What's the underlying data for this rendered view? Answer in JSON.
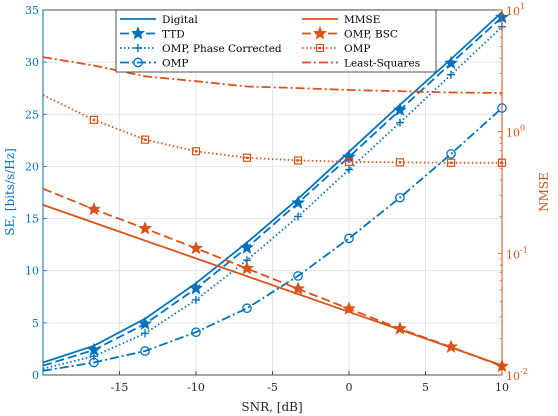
{
  "chart_data": {
    "type": "line",
    "xlabel": "SNR, [dB]",
    "ylabel_left": "SE, [bits/s/Hz]",
    "ylabel_right": "NMSE",
    "xlim": [
      -20,
      10
    ],
    "ylim_left": [
      0,
      35
    ],
    "ylim_right_log10": [
      -2,
      1
    ],
    "x_ticks": [
      -15,
      -10,
      -5,
      0,
      5,
      10
    ],
    "x_tick_labels": [
      "-15",
      "-10",
      "-5",
      "0",
      "5",
      "10"
    ],
    "y_left_ticks": [
      0,
      5,
      10,
      15,
      20,
      25,
      30,
      35
    ],
    "y_left_tick_labels": [
      "0",
      "5",
      "10",
      "15",
      "20",
      "25",
      "30",
      "35"
    ],
    "y_right_ticks": [
      0.01,
      0.1,
      1,
      10
    ],
    "y_right_tick_labels": [
      "10",
      "10",
      "10",
      "10"
    ],
    "y_right_tick_exponents": [
      "-2",
      "-1",
      "0",
      "1"
    ],
    "grid": true,
    "colors": {
      "blue": "#0072BD",
      "orange": "#D95319"
    },
    "legend": {
      "placement": "top",
      "columns": [
        [
          "Digital",
          "TTD",
          "OMP, Phase Corrected",
          "OMP"
        ],
        [
          "MMSE",
          "OMP, BSC",
          "OMP",
          "Least-Squares"
        ]
      ]
    },
    "series": [
      {
        "name": "Digital",
        "axis": "left",
        "color": "#0072BD",
        "line": "solid",
        "marker": "none",
        "x": [
          -20,
          -16.67,
          -13.33,
          -10,
          -6.67,
          -3.33,
          0,
          3.33,
          6.67,
          10
        ],
        "y": [
          1.2,
          2.8,
          5.4,
          8.8,
          12.7,
          16.9,
          21.4,
          25.9,
          30.3,
          34.8
        ]
      },
      {
        "name": "TTD",
        "axis": "left",
        "color": "#0072BD",
        "line": "dashed",
        "marker": "star",
        "x": [
          -20,
          -16.67,
          -13.33,
          -10,
          -6.67,
          -3.33,
          0,
          3.33,
          6.67,
          10
        ],
        "y": [
          0.9,
          2.4,
          4.9,
          8.3,
          12.2,
          16.5,
          20.9,
          25.4,
          29.9,
          34.3
        ]
      },
      {
        "name": "OMP, Phase Corrected",
        "axis": "left",
        "color": "#0072BD",
        "line": "dotted",
        "marker": "plus",
        "x": [
          -20,
          -16.67,
          -13.33,
          -10,
          -6.67,
          -3.33,
          0,
          3.33,
          6.67,
          10
        ],
        "y": [
          0.6,
          1.8,
          4.0,
          7.2,
          11.0,
          15.2,
          19.7,
          24.2,
          28.8,
          33.4
        ]
      },
      {
        "name": "OMP",
        "axis": "left",
        "color": "#0072BD",
        "line": "dashdot",
        "marker": "circle",
        "x": [
          -20,
          -16.67,
          -13.33,
          -10,
          -6.67,
          -3.33,
          0,
          3.33,
          6.67,
          10
        ],
        "y": [
          0.4,
          1.2,
          2.3,
          4.1,
          6.4,
          9.5,
          13.1,
          17.0,
          21.2,
          25.6
        ]
      },
      {
        "name": "MMSE",
        "axis": "right",
        "color": "#D95319",
        "line": "solid",
        "marker": "none",
        "x": [
          -20,
          10
        ],
        "y": [
          0.25,
          0.012
        ]
      },
      {
        "name": "OMP, BSC",
        "axis": "right",
        "color": "#D95319",
        "line": "dashed",
        "marker": "star",
        "x": [
          -20,
          -16.67,
          -13.33,
          -10,
          -6.67,
          -3.33,
          0,
          3.33,
          6.67,
          10
        ],
        "y": [
          0.34,
          0.23,
          0.16,
          0.11,
          0.075,
          0.051,
          0.035,
          0.024,
          0.017,
          0.0118
        ]
      },
      {
        "name": "OMP",
        "axis": "right",
        "color": "#D95319",
        "line": "dotted",
        "marker": "square",
        "x": [
          -20,
          -16.67,
          -13.33,
          -10,
          -6.67,
          -3.33,
          0,
          3.33,
          6.67,
          10
        ],
        "y": [
          2.0,
          1.25,
          0.86,
          0.69,
          0.61,
          0.58,
          0.565,
          0.56,
          0.555,
          0.555
        ]
      },
      {
        "name": "Least-Squares",
        "axis": "right",
        "color": "#D95319",
        "line": "dashdot",
        "marker": "none",
        "x": [
          -20,
          -16.67,
          -13.33,
          -10,
          -6.67,
          -3.33,
          0,
          3.33,
          6.67,
          10
        ],
        "y": [
          4.1,
          3.5,
          2.85,
          2.6,
          2.35,
          2.28,
          2.2,
          2.15,
          2.1,
          2.08
        ]
      }
    ]
  }
}
